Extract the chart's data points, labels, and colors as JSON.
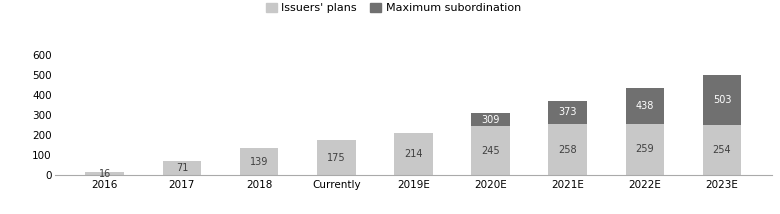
{
  "categories": [
    "2016",
    "2017",
    "2018",
    "Currently",
    "2019E",
    "2020E",
    "2021E",
    "2022E",
    "2023E"
  ],
  "issuers_plans": [
    16,
    71,
    139,
    175,
    214,
    245,
    258,
    259,
    254
  ],
  "max_subordination": [
    0,
    0,
    0,
    0,
    0,
    64,
    115,
    179,
    249
  ],
  "issuers_labels": [
    16,
    71,
    139,
    175,
    214,
    245,
    258,
    259,
    254
  ],
  "total_labels": [
    null,
    null,
    null,
    null,
    null,
    309,
    373,
    438,
    503
  ],
  "color_issuers": "#c8c8c8",
  "color_max_sub": "#707070",
  "legend_issuers": "Issuers' plans",
  "legend_max_sub": "Maximum subordination",
  "ylim": [
    0,
    640
  ],
  "yticks": [
    0,
    100,
    200,
    300,
    400,
    500,
    600
  ],
  "bar_width": 0.5,
  "label_fontsize": 7.0,
  "legend_fontsize": 8.0,
  "tick_fontsize": 7.5,
  "background_color": "#ffffff"
}
